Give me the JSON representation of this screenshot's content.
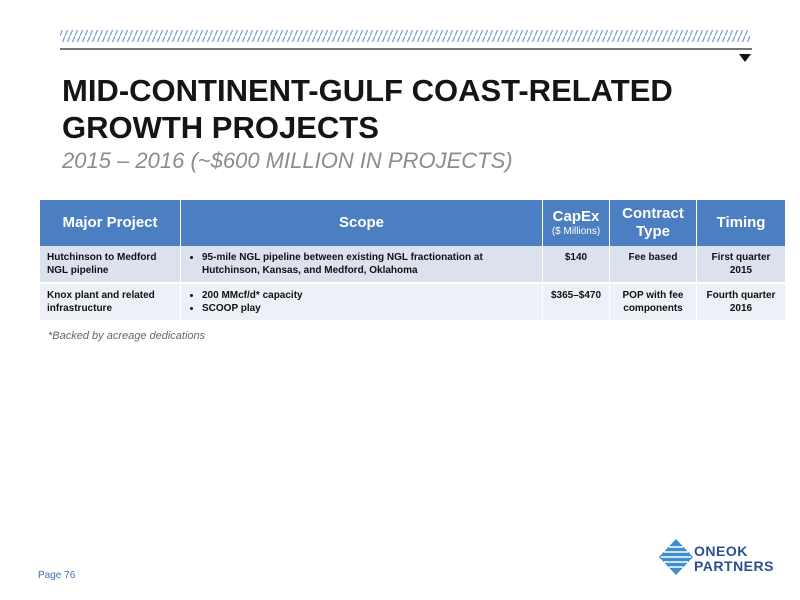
{
  "header": {
    "title_lines": [
      "MID-CONTINENT-GULF COAST-RELATED",
      "GROWTH PROJECTS"
    ],
    "subtitle": "2015 – 2016 (~$600 MILLION IN PROJECTS)"
  },
  "table": {
    "columns": [
      {
        "label": "Major Project"
      },
      {
        "label": "Scope"
      },
      {
        "label": "CapEx",
        "sublabel": "($ Millions)"
      },
      {
        "label": "Contract Type"
      },
      {
        "label": "Timing"
      }
    ],
    "rows": [
      {
        "project": "Hutchinson to Medford NGL pipeline",
        "scope": [
          "95-mile NGL pipeline between existing NGL fractionation at Hutchinson, Kansas, and Medford, Oklahoma"
        ],
        "capex": "$140",
        "contract": "Fee based",
        "timing": "First quarter 2015"
      },
      {
        "project": "Knox plant and related infrastructure",
        "scope": [
          "200 MMcf/d* capacity",
          "SCOOP play"
        ],
        "capex": "$365–$470",
        "contract": "POP with fee components",
        "timing": "Fourth quarter 2016"
      }
    ]
  },
  "footnote": "*Backed by acreage dedications",
  "footer": {
    "page": "Page 76",
    "logo_lines": [
      "ONEOK",
      "PARTNERS"
    ]
  }
}
